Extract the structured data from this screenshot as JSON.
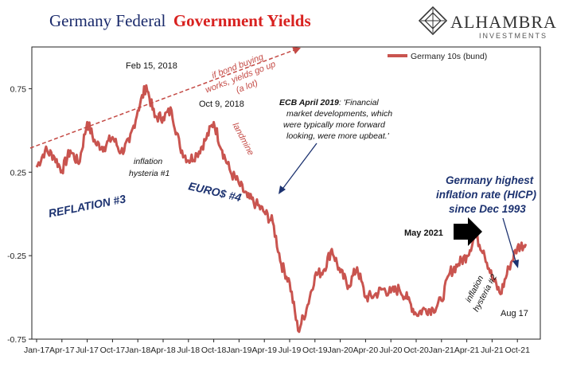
{
  "title": {
    "part1": "Germany Federal",
    "part2": "Government Yields"
  },
  "logo": {
    "name": "ALHAMBRA",
    "sub": "INVESTMENTS"
  },
  "colors": {
    "series": "#c9544f",
    "title_blue": "#1a2a6b",
    "title_red": "#d8211f",
    "annotation_blue": "#1c3270",
    "annotation_red": "#c44a45"
  },
  "chart_data": {
    "type": "line",
    "title": "",
    "xlabel": "",
    "ylabel": "",
    "legend": {
      "position": "top-right"
    },
    "grid": false,
    "ylim": [
      -0.75,
      1.0
    ],
    "yticks": [
      0.75,
      0.25,
      -0.25,
      -0.75
    ],
    "ytick_labels": [
      "0.75",
      "0.25",
      "-0.25",
      "-0.75"
    ],
    "xticks": [
      "Jan-17",
      "Apr-17",
      "Jul-17",
      "Oct-17",
      "Jan-18",
      "Apr-18",
      "Jul-18",
      "Oct-18",
      "Jan-19",
      "Apr-19",
      "Jul-19",
      "Oct-19",
      "Jan-20",
      "Apr-20",
      "Jul-20",
      "Oct-20",
      "Jan-21",
      "Apr-21",
      "Jul-21",
      "Oct-21"
    ],
    "series": [
      {
        "name": "Germany 10s (bund)",
        "x": [
          "Jan-17",
          "Feb-17",
          "Mar-17",
          "Apr-17",
          "May-17",
          "Jun-17",
          "Jul-17",
          "Aug-17",
          "Sep-17",
          "Oct-17",
          "Nov-17",
          "Dec-17",
          "Jan-18",
          "Feb-18",
          "Mar-18",
          "Apr-18",
          "May-18",
          "Jun-18",
          "Jul-18",
          "Aug-18",
          "Sep-18",
          "Oct-18",
          "Nov-18",
          "Dec-18",
          "Jan-19",
          "Feb-19",
          "Mar-19",
          "Apr-19",
          "May-19",
          "Jun-19",
          "Jul-19",
          "Aug-19",
          "Sep-19",
          "Oct-19",
          "Nov-19",
          "Dec-19",
          "Jan-20",
          "Feb-20",
          "Mar-20",
          "Apr-20",
          "May-20",
          "Jun-20",
          "Jul-20",
          "Aug-20",
          "Sep-20",
          "Oct-20",
          "Nov-20",
          "Dec-20",
          "Jan-21",
          "Feb-21",
          "Mar-21",
          "Apr-21",
          "May-21",
          "Jun-21",
          "Jul-21",
          "Aug-21",
          "Sep-21",
          "Oct-21",
          "Nov-21"
        ],
        "values": [
          0.28,
          0.38,
          0.35,
          0.26,
          0.38,
          0.3,
          0.55,
          0.42,
          0.4,
          0.46,
          0.37,
          0.43,
          0.62,
          0.77,
          0.58,
          0.58,
          0.62,
          0.4,
          0.32,
          0.36,
          0.44,
          0.55,
          0.38,
          0.25,
          0.18,
          0.1,
          0.06,
          0.01,
          -0.05,
          -0.3,
          -0.41,
          -0.7,
          -0.57,
          -0.37,
          -0.34,
          -0.21,
          -0.35,
          -0.43,
          -0.32,
          -0.5,
          -0.49,
          -0.45,
          -0.47,
          -0.45,
          -0.51,
          -0.6,
          -0.57,
          -0.57,
          -0.52,
          -0.35,
          -0.3,
          -0.25,
          -0.13,
          -0.22,
          -0.38,
          -0.48,
          -0.32,
          -0.2,
          -0.18
        ]
      }
    ],
    "annotations": [
      {
        "id": "feb15",
        "text": "Feb 15, 2018"
      },
      {
        "id": "oct9",
        "text": "Oct 9, 2018"
      },
      {
        "id": "bond",
        "lines": [
          "if bond buying",
          "works, yields go up",
          "(a lot)"
        ]
      },
      {
        "id": "ecb",
        "bold": "ECB April 2019",
        "lines": [
          ": 'Financial",
          "market developments, which",
          "were typically more forward",
          "looking, were more upbeat.'"
        ]
      },
      {
        "id": "landmine",
        "text": "landmine"
      },
      {
        "id": "hysteria1",
        "lines": [
          "inflation",
          "hysteria #1"
        ]
      },
      {
        "id": "reflation",
        "text": "REFLATION #3"
      },
      {
        "id": "euros",
        "text": "EURO$ #4"
      },
      {
        "id": "highest",
        "lines": [
          "Germany highest",
          "inflation rate (HICP)",
          "since Dec 1993"
        ]
      },
      {
        "id": "may2021",
        "text": "May 2021"
      },
      {
        "id": "hysteria2",
        "lines": [
          "inflation",
          "hysteria #2"
        ]
      },
      {
        "id": "aug17",
        "text": "Aug 17"
      }
    ]
  }
}
